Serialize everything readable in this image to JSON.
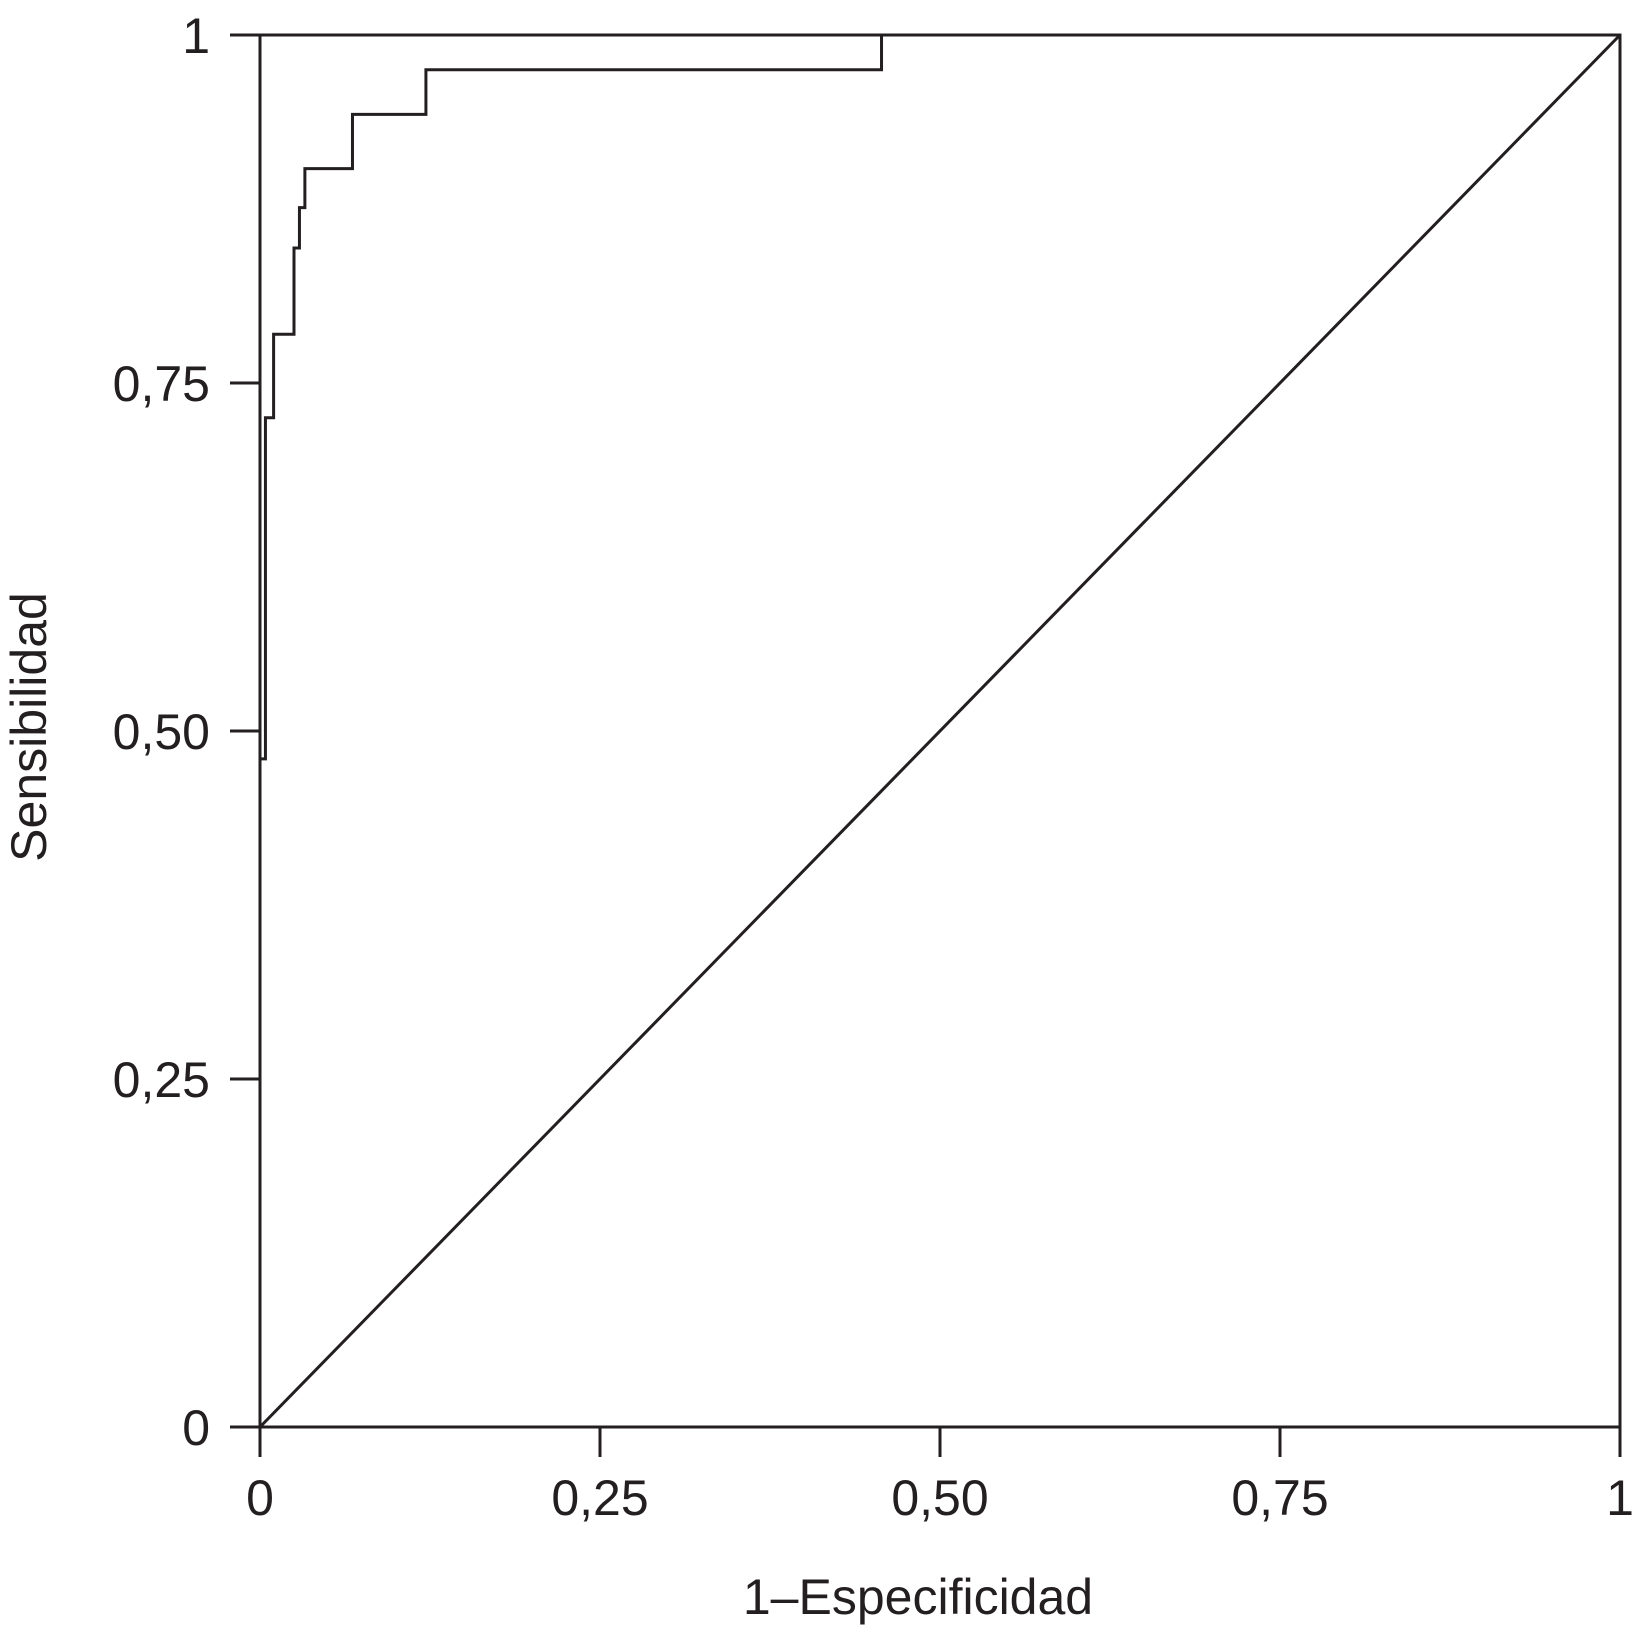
{
  "chart_data": {
    "type": "line",
    "title": "",
    "xlabel": "1–Especificidad",
    "ylabel": "Sensibilidad",
    "xlim": [
      0,
      1
    ],
    "ylim": [
      0,
      1
    ],
    "x_ticks": [
      {
        "value": 0,
        "label": "0"
      },
      {
        "value": 0.25,
        "label": "0,25"
      },
      {
        "value": 0.5,
        "label": "0,50"
      },
      {
        "value": 0.75,
        "label": "0,75"
      },
      {
        "value": 1,
        "label": "1"
      }
    ],
    "y_ticks": [
      {
        "value": 0,
        "label": "0"
      },
      {
        "value": 0.25,
        "label": "0,25"
      },
      {
        "value": 0.5,
        "label": "0,50"
      },
      {
        "value": 0.75,
        "label": "0,75"
      },
      {
        "value": 1,
        "label": "1"
      }
    ],
    "grid": false,
    "legend": "none",
    "line_color": "#231f20",
    "series": [
      {
        "points": [
          [
            0,
            0
          ],
          [
            0,
            0.48
          ],
          [
            0.004,
            0.48
          ],
          [
            0.004,
            0.725
          ],
          [
            0.01,
            0.725
          ],
          [
            0.01,
            0.785
          ],
          [
            0.025,
            0.785
          ],
          [
            0.025,
            0.847
          ],
          [
            0.029,
            0.847
          ],
          [
            0.029,
            0.876
          ],
          [
            0.033,
            0.876
          ],
          [
            0.033,
            0.904
          ],
          [
            0.068,
            0.904
          ],
          [
            0.068,
            0.943
          ],
          [
            0.122,
            0.943
          ],
          [
            0.122,
            0.975
          ],
          [
            0.457,
            0.975
          ],
          [
            0.457,
            1
          ],
          [
            1,
            1
          ]
        ]
      },
      {
        "points": [
          [
            0,
            0
          ],
          [
            1,
            1
          ]
        ]
      }
    ]
  }
}
